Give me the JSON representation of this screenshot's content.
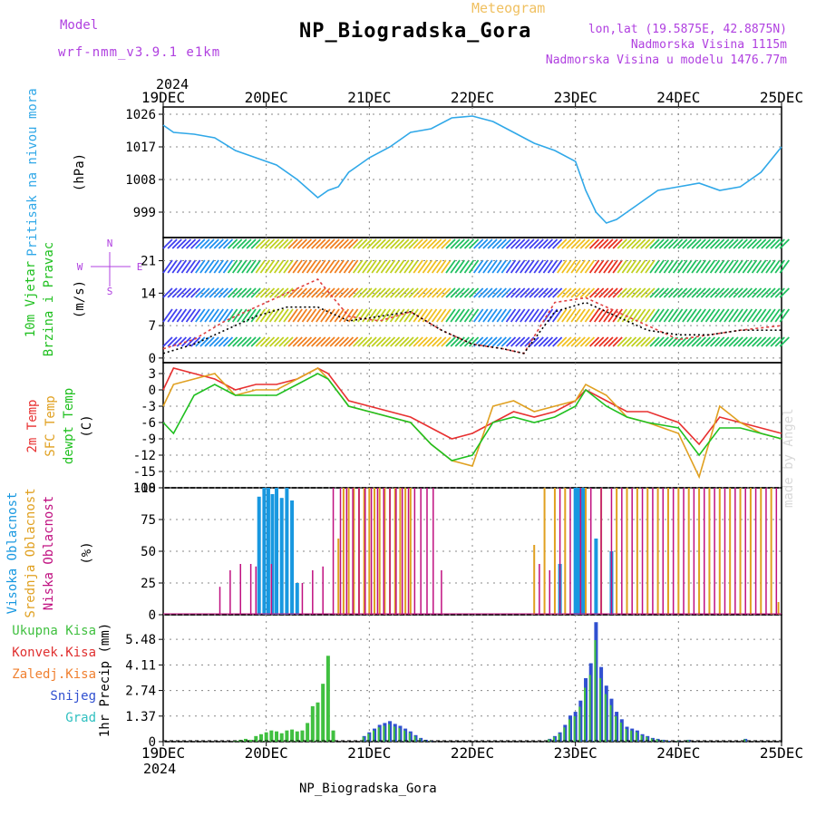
{
  "header": {
    "model_label": "Model",
    "model_name": "wrf-nmm_v3.9.1 e1km",
    "meteogram_label": "Meteogram",
    "station_title": "NP_Biogradska_Gora",
    "lonlat": "lon,lat (19.5875E, 42.8875N)",
    "elevation": "Nadmorska Visina 1115m",
    "model_elevation": "Nadmorska Visina u modelu 1476.77m",
    "footer_station": "NP_Biogradska_Gora",
    "made_by": "made by Angel"
  },
  "colors": {
    "pressure": "#30a8e8",
    "t2m": "#e83030",
    "sfc": "#e0a020",
    "dewpt": "#20c020",
    "precip_total": "#40c040",
    "precip_conv": "#e03030",
    "precip_frz": "#f08030",
    "precip_snow": "#3050d0",
    "precip_grad": "#30c0c0",
    "cloud_high": "#1898e0",
    "cloud_mid": "#e0a020",
    "cloud_low": "#c01080"
  },
  "chart_data": [
    {
      "type": "line",
      "panel": "pressure",
      "ylabel_a": "Pritisak na nivou mora",
      "ylabel_b": "(hPa)",
      "ylim": [
        992,
        1028
      ],
      "yticks": [
        999,
        1008,
        1017,
        1026
      ],
      "year_label": "2024",
      "x_tick_labels": [
        "19DEC",
        "20DEC",
        "21DEC",
        "22DEC",
        "23DEC",
        "24DEC",
        "25DEC"
      ],
      "grid": true,
      "series": [
        {
          "key": "pressure",
          "x": [
            0,
            0.1,
            0.3,
            0.5,
            0.7,
            0.9,
            1.1,
            1.3,
            1.5,
            1.6,
            1.7,
            1.8,
            1.9,
            2.0,
            2.2,
            2.4,
            2.6,
            2.8,
            3.0,
            3.2,
            3.4,
            3.6,
            3.8,
            4.0,
            4.1,
            4.2,
            4.3,
            4.4,
            4.5,
            4.6,
            4.7,
            4.8,
            5.0,
            5.2,
            5.4,
            5.6,
            5.8,
            6.0
          ],
          "values": [
            1023,
            1021,
            1020.5,
            1019.5,
            1016,
            1014,
            1012,
            1008,
            1003,
            1005,
            1006,
            1010,
            1012,
            1014,
            1017,
            1021,
            1022,
            1025,
            1025.5,
            1024,
            1021,
            1018,
            1016,
            1013,
            1005,
            999,
            996,
            997,
            999,
            1001,
            1003,
            1005,
            1006,
            1007,
            1005,
            1006,
            1010,
            1017
          ]
        }
      ]
    },
    {
      "type": "line",
      "panel": "wind",
      "ylabel_a": "10m Vjetar",
      "ylabel_b": "Brzina i Pravac",
      "ylabel_c": "(m/s)",
      "compass": [
        "N",
        "W",
        "E",
        "S"
      ],
      "ylim": [
        -1,
        26
      ],
      "yticks": [
        0,
        7,
        14,
        21
      ],
      "grid": true,
      "series": [
        {
          "key": "gust",
          "x": [
            0,
            0.3,
            0.6,
            0.9,
            1.2,
            1.5,
            1.8,
            2.1,
            2.4,
            2.7,
            3.0,
            3.3,
            3.5,
            3.8,
            4.1,
            4.4,
            4.7,
            5.0,
            5.3,
            5.6,
            6.0
          ],
          "values": [
            2,
            4,
            8,
            11,
            14,
            17,
            9,
            8,
            10,
            6,
            3,
            2,
            1,
            12,
            13,
            10,
            7,
            4,
            5,
            6,
            7
          ]
        },
        {
          "key": "speed",
          "x": [
            0,
            0.3,
            0.6,
            0.9,
            1.2,
            1.5,
            1.8,
            2.1,
            2.4,
            2.7,
            3.0,
            3.3,
            3.5,
            3.8,
            4.1,
            4.4,
            4.7,
            5.0,
            5.3,
            5.6,
            6.0
          ],
          "values": [
            1,
            3,
            6,
            9,
            11,
            11,
            8,
            9,
            10,
            6,
            3,
            2,
            1,
            10,
            12,
            9,
            6,
            5,
            5,
            6,
            6
          ]
        }
      ]
    },
    {
      "type": "line",
      "panel": "temperature",
      "ylabel_a": "2m Temp",
      "ylabel_b": "SFC Temp",
      "ylabel_c": "dewpt Temp",
      "ylabel_d": "(C)",
      "ylim": [
        -18,
        5
      ],
      "yticks": [
        -18,
        -15,
        -12,
        -9,
        -6,
        -3,
        0,
        3
      ],
      "grid": true,
      "series": [
        {
          "key": "t2m",
          "x": [
            0,
            0.1,
            0.3,
            0.5,
            0.7,
            0.9,
            1.1,
            1.3,
            1.5,
            1.6,
            1.8,
            2.0,
            2.2,
            2.4,
            2.6,
            2.8,
            3.0,
            3.2,
            3.4,
            3.6,
            3.8,
            4.0,
            4.1,
            4.3,
            4.5,
            4.7,
            5.0,
            5.2,
            5.4,
            5.6,
            5.8,
            6.0
          ],
          "values": [
            0,
            4,
            3,
            2,
            0,
            1,
            1,
            2,
            4,
            3,
            -2,
            -3,
            -4,
            -5,
            -7,
            -9,
            -8,
            -6,
            -4,
            -5,
            -4,
            -2,
            0,
            -2,
            -4,
            -4,
            -6,
            -10,
            -5,
            -6,
            -7,
            -8
          ]
        },
        {
          "key": "sfc",
          "x": [
            0,
            0.1,
            0.3,
            0.5,
            0.7,
            0.9,
            1.1,
            1.3,
            1.5,
            1.6,
            1.8,
            2.0,
            2.2,
            2.4,
            2.6,
            2.8,
            3.0,
            3.2,
            3.4,
            3.6,
            3.8,
            4.0,
            4.1,
            4.3,
            4.5,
            4.7,
            5.0,
            5.2,
            5.4,
            5.6,
            5.8,
            6.0
          ],
          "values": [
            -3,
            1,
            2,
            3,
            -1,
            0,
            0,
            2,
            4,
            2,
            -3,
            -4,
            -5,
            -6,
            -10,
            -13,
            -14,
            -3,
            -2,
            -4,
            -3,
            -2,
            1,
            -1,
            -5,
            -6,
            -8,
            -16,
            -3,
            -6,
            -8,
            -9
          ]
        },
        {
          "key": "dewpt",
          "x": [
            0,
            0.1,
            0.3,
            0.5,
            0.7,
            0.9,
            1.1,
            1.3,
            1.5,
            1.6,
            1.8,
            2.0,
            2.2,
            2.4,
            2.6,
            2.8,
            3.0,
            3.2,
            3.4,
            3.6,
            3.8,
            4.0,
            4.1,
            4.3,
            4.5,
            4.7,
            5.0,
            5.2,
            5.4,
            5.6,
            5.8,
            6.0
          ],
          "values": [
            -6,
            -8,
            -1,
            1,
            -1,
            -1,
            -1,
            1,
            3,
            2,
            -3,
            -4,
            -5,
            -6,
            -10,
            -13,
            -12,
            -6,
            -5,
            -6,
            -5,
            -3,
            0,
            -3,
            -5,
            -6,
            -7,
            -12,
            -7,
            -7,
            -8,
            -9
          ]
        }
      ]
    },
    {
      "type": "bar",
      "panel": "clouds",
      "ylabel_a": "Visoka Oblacnost",
      "ylabel_b": "Srednja Oblacnost",
      "ylabel_c": "Niska Oblacnost",
      "ylabel_d": "(%)",
      "ylim": [
        0,
        100
      ],
      "yticks": [
        0,
        25,
        50,
        75,
        100
      ],
      "grid": true,
      "series": [
        {
          "key": "high",
          "x": [
            0.93,
            0.98,
            1.02,
            1.06,
            1.1,
            1.15,
            1.2,
            1.25,
            1.3,
            4.0,
            4.02,
            4.04,
            4.06,
            4.08,
            4.2,
            4.35,
            3.85
          ],
          "values": [
            93,
            100,
            100,
            95,
            100,
            92,
            100,
            90,
            25,
            100,
            100,
            100,
            100,
            100,
            60,
            50,
            40
          ]
        },
        {
          "key": "mid",
          "x": [
            1.7,
            1.75,
            1.8,
            1.85,
            1.9,
            1.95,
            2.0,
            2.05,
            2.1,
            2.15,
            2.2,
            2.25,
            2.3,
            2.35,
            2.4,
            3.6,
            3.7,
            3.8,
            3.9,
            4.1,
            4.25,
            4.4,
            4.5,
            4.6,
            4.7,
            4.8,
            4.9,
            5.0,
            5.1,
            5.2,
            5.3,
            5.4,
            5.5,
            5.6,
            5.7,
            5.8,
            5.9,
            5.97
          ],
          "values": [
            60,
            100,
            100,
            100,
            100,
            100,
            100,
            100,
            100,
            100,
            100,
            100,
            100,
            100,
            100,
            55,
            100,
            100,
            100,
            100,
            100,
            100,
            100,
            100,
            100,
            100,
            100,
            100,
            100,
            100,
            100,
            100,
            100,
            100,
            100,
            100,
            100,
            10
          ]
        },
        {
          "key": "low",
          "x": [
            0.55,
            0.65,
            0.75,
            0.85,
            0.9,
            1.05,
            1.35,
            1.45,
            1.55,
            1.65,
            1.72,
            1.78,
            1.84,
            1.9,
            1.96,
            2.02,
            2.08,
            2.14,
            2.2,
            2.26,
            2.32,
            2.38,
            2.44,
            2.5,
            2.56,
            2.62,
            2.7,
            3.65,
            3.75,
            3.85,
            3.95,
            4.05,
            4.15,
            4.25,
            4.35,
            4.45,
            4.55,
            4.65,
            4.75,
            4.85,
            4.95,
            5.05,
            5.15,
            5.25,
            5.35,
            5.45,
            5.55,
            5.65,
            5.75,
            5.85,
            5.95
          ],
          "values": [
            22,
            35,
            40,
            40,
            38,
            40,
            25,
            35,
            38,
            100,
            100,
            100,
            100,
            100,
            100,
            100,
            100,
            100,
            100,
            100,
            100,
            100,
            100,
            100,
            100,
            100,
            35,
            40,
            35,
            100,
            100,
            100,
            100,
            100,
            100,
            100,
            100,
            100,
            100,
            100,
            100,
            100,
            100,
            100,
            100,
            100,
            100,
            100,
            100,
            100,
            100
          ]
        }
      ]
    },
    {
      "type": "bar",
      "panel": "precip",
      "ylabel": "1hr Precip (mm)",
      "legend": [
        "Ukupna Kisa",
        "Konvek.Kisa",
        "Zaledj.Kisa",
        "Snijeg",
        "Grad"
      ],
      "ylim": [
        0,
        6.8
      ],
      "yticks": [
        0,
        1.37,
        2.74,
        4.11,
        5.48
      ],
      "year_label": "2024",
      "x_tick_labels": [
        "19DEC",
        "20DEC",
        "21DEC",
        "22DEC",
        "23DEC",
        "24DEC",
        "25DEC"
      ],
      "grid": true,
      "series": [
        {
          "key": "total",
          "x": [
            0.7,
            0.75,
            0.8,
            0.85,
            0.9,
            0.95,
            1.0,
            1.05,
            1.1,
            1.15,
            1.2,
            1.25,
            1.3,
            1.35,
            1.4,
            1.45,
            1.5,
            1.55,
            1.6,
            1.65
          ],
          "values": [
            0.05,
            0.1,
            0.15,
            0.1,
            0.3,
            0.4,
            0.5,
            0.6,
            0.55,
            0.45,
            0.6,
            0.65,
            0.55,
            0.6,
            1.0,
            1.9,
            2.1,
            3.1,
            4.6,
            0.6
          ]
        },
        {
          "key": "snow",
          "x": [
            1.95,
            2.0,
            2.05,
            2.1,
            2.15,
            2.2,
            2.25,
            2.3,
            2.35,
            2.4,
            2.45,
            2.5,
            2.55,
            2.6,
            3.75,
            3.8,
            3.85,
            3.9,
            3.95,
            4.0,
            4.05,
            4.1,
            4.15,
            4.2,
            4.25,
            4.3,
            4.35,
            4.4,
            4.45,
            4.5,
            4.55,
            4.6,
            4.65,
            4.7,
            4.75,
            4.8,
            4.85,
            4.9,
            5.0,
            5.1,
            5.65
          ],
          "values": [
            0.3,
            0.5,
            0.7,
            0.9,
            1.0,
            1.1,
            0.95,
            0.85,
            0.7,
            0.55,
            0.35,
            0.2,
            0.1,
            0.05,
            0.15,
            0.3,
            0.5,
            0.9,
            1.4,
            1.6,
            2.2,
            3.4,
            4.2,
            6.4,
            4.0,
            3.0,
            2.3,
            1.6,
            1.2,
            0.8,
            0.7,
            0.6,
            0.4,
            0.3,
            0.2,
            0.15,
            0.1,
            0.05,
            0.05,
            0.1,
            0.15
          ]
        }
      ]
    }
  ]
}
